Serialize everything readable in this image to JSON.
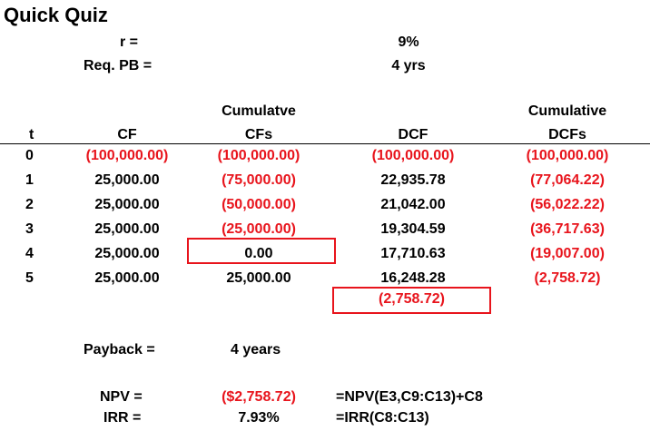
{
  "title": "Quick Quiz",
  "params": {
    "r_label": "r =",
    "r_value": "9%",
    "pb_label": "Req. PB =",
    "pb_value": "4 yrs"
  },
  "headers": {
    "t": "t",
    "cf": "CF",
    "cum_cf_line1": "Cumulatve",
    "cum_cf_line2": "CFs",
    "dcf": "DCF",
    "cum_dcf_line1": "Cumulative",
    "cum_dcf_line2": "DCFs"
  },
  "rows": [
    {
      "t": "0",
      "cf": "(100,000.00)",
      "cum_cf": "(100,000.00)",
      "dcf": "(100,000.00)",
      "cum_dcf": "(100,000.00)"
    },
    {
      "t": "1",
      "cf": "25,000.00",
      "cum_cf": "(75,000.00)",
      "dcf": "22,935.78",
      "cum_dcf": "(77,064.22)"
    },
    {
      "t": "2",
      "cf": "25,000.00",
      "cum_cf": "(50,000.00)",
      "dcf": "21,042.00",
      "cum_dcf": "(56,022.22)"
    },
    {
      "t": "3",
      "cf": "25,000.00",
      "cum_cf": "(25,000.00)",
      "dcf": "19,304.59",
      "cum_dcf": "(36,717.63)"
    },
    {
      "t": "4",
      "cf": "25,000.00",
      "cum_cf": "0.00",
      "dcf": "17,710.63",
      "cum_dcf": "(19,007.00)"
    },
    {
      "t": "5",
      "cf": "25,000.00",
      "cum_cf": "25,000.00",
      "dcf": "16,248.28",
      "cum_dcf": "(2,758.72)"
    }
  ],
  "dcf_total": "(2,758.72)",
  "payback": {
    "label": "Payback =",
    "value": "4 years"
  },
  "npv": {
    "label": "NPV =",
    "value": "($2,758.72)",
    "formula": "=NPV(E3,C9:C13)+C8"
  },
  "irr": {
    "label": "IRR =",
    "value": "7.93%",
    "formula": "=IRR(C8:C13)"
  },
  "colors": {
    "negative": "#e8141c",
    "box": "#e8141c",
    "text": "#000000"
  }
}
